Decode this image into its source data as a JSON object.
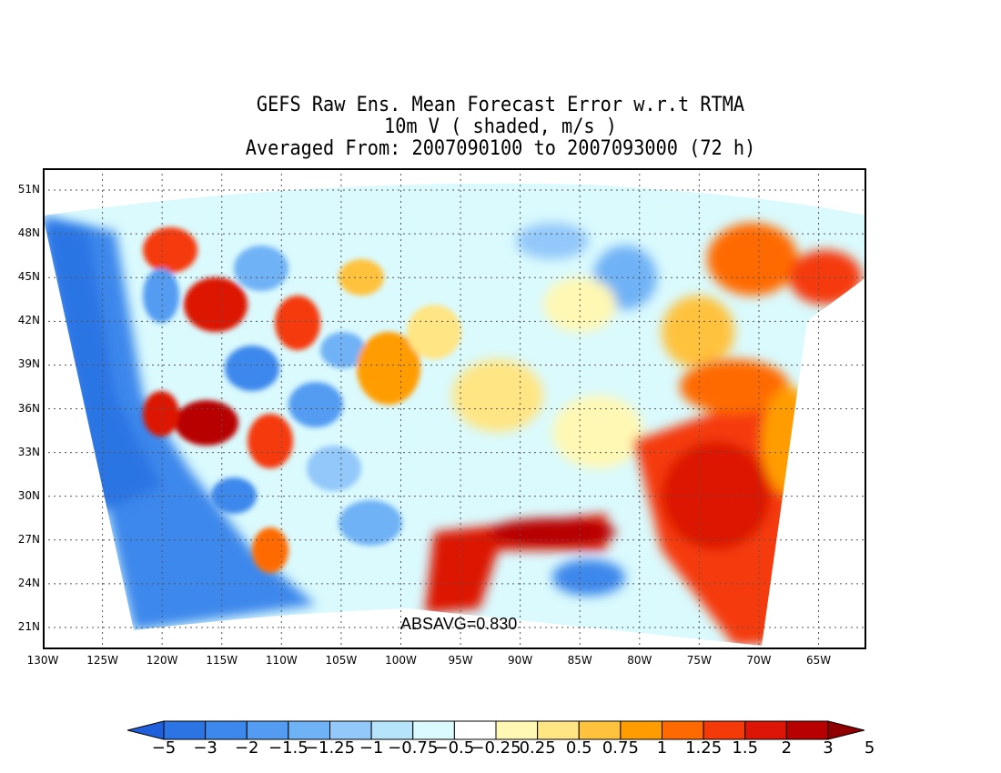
{
  "title": {
    "line1": "GEFS Raw Ens. Mean Forecast Error w.r.t RTMA",
    "line2": "10m V ( shaded, m/s )",
    "line3": "Averaged From: 2007090100 to 2007093000 (72 h)"
  },
  "map": {
    "lon_range": [
      -130,
      -61
    ],
    "lat_range": [
      19.5,
      52.5
    ],
    "lat_ticks": [
      "51N",
      "48N",
      "45N",
      "42N",
      "39N",
      "36N",
      "33N",
      "30N",
      "27N",
      "24N",
      "21N"
    ],
    "lat_values": [
      51,
      48,
      45,
      42,
      39,
      36,
      33,
      30,
      27,
      24,
      21
    ],
    "lon_ticks": [
      "130W",
      "125W",
      "120W",
      "115W",
      "110W",
      "105W",
      "100W",
      "95W",
      "90W",
      "85W",
      "80W",
      "75W",
      "70W",
      "65W"
    ],
    "lon_values": [
      -130,
      -125,
      -120,
      -115,
      -110,
      -105,
      -100,
      -95,
      -90,
      -85,
      -80,
      -75,
      -70,
      -65
    ],
    "grid": true,
    "absavg": "ABSAVG=0.830"
  },
  "colorbar": {
    "labels": [
      "−5",
      "−3",
      "−2",
      "−1.5",
      "−1.25",
      "−1",
      "−0.75",
      "−0.5",
      "−0.25",
      "0.25",
      "0.5",
      "0.75",
      "1",
      "1.25",
      "1.5",
      "2",
      "3",
      "5"
    ],
    "colors": [
      "#1f5fdc",
      "#2c74e4",
      "#3d88ec",
      "#539cf2",
      "#6fb2f6",
      "#93c8fa",
      "#b5e4fb",
      "#dafafd",
      "#ffffff",
      "#fff8b4",
      "#ffe583",
      "#ffc23c",
      "#ff9d00",
      "#ff6a00",
      "#f53a0a",
      "#dc1506",
      "#b80000",
      "#900000"
    ]
  }
}
